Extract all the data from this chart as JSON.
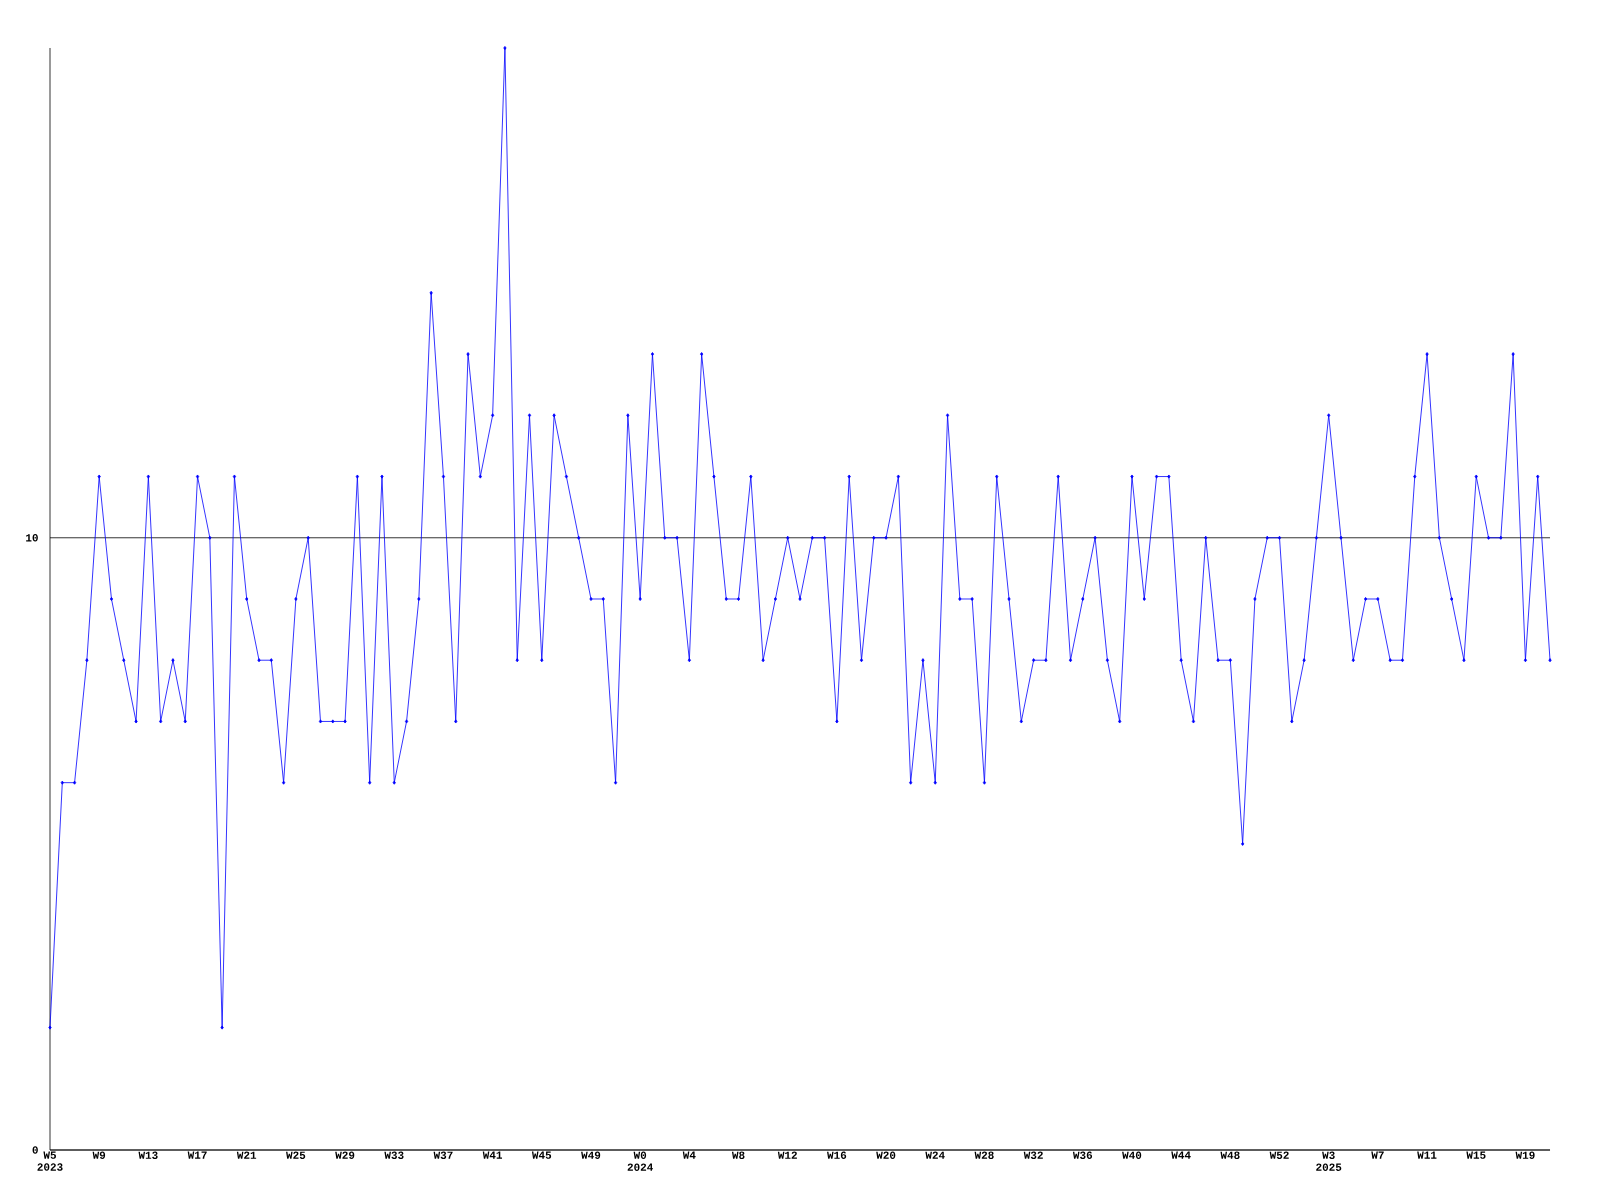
{
  "chart_data": {
    "type": "line",
    "color": "#0000ff",
    "marker": "diamond",
    "grid": "y",
    "ylim": [
      0,
      18
    ],
    "yticks": [
      0,
      10
    ],
    "categories": [
      "W5 2023",
      null,
      null,
      null,
      "W9",
      null,
      null,
      null,
      "W13",
      null,
      null,
      null,
      "W17",
      null,
      null,
      null,
      "W21",
      null,
      null,
      null,
      "W25",
      null,
      null,
      null,
      "W29",
      null,
      null,
      null,
      "W33",
      null,
      null,
      null,
      "W37",
      null,
      null,
      null,
      "W41",
      null,
      null,
      null,
      "W45",
      null,
      null,
      null,
      "W49",
      null,
      null,
      null,
      "W0 2024",
      null,
      null,
      null,
      "W4",
      null,
      null,
      null,
      "W8",
      null,
      null,
      null,
      "W12",
      null,
      null,
      null,
      "W16",
      null,
      null,
      null,
      "W20",
      null,
      null,
      null,
      "W24",
      null,
      null,
      null,
      "W28",
      null,
      null,
      null,
      "W32",
      null,
      null,
      null,
      "W36",
      null,
      null,
      null,
      "W40",
      null,
      null,
      null,
      "W44",
      null,
      null,
      null,
      "W48",
      null,
      null,
      null,
      "W52",
      null,
      null,
      null,
      "W3 2025",
      null,
      null,
      null,
      "W7",
      null,
      null,
      null,
      "W11",
      null,
      null,
      null,
      "W15",
      null,
      null,
      null,
      "W19",
      null,
      null
    ],
    "values": [
      2,
      6,
      6,
      8,
      11,
      9,
      8,
      7,
      11,
      7,
      8,
      7,
      11,
      10,
      2,
      11,
      9,
      8,
      8,
      6,
      9,
      10,
      7,
      7,
      7,
      11,
      6,
      11,
      6,
      7,
      9,
      14,
      11,
      7,
      13,
      11,
      12,
      18,
      8,
      12,
      8,
      12,
      11,
      10,
      9,
      9,
      6,
      12,
      9,
      13,
      10,
      10,
      8,
      13,
      11,
      9,
      9,
      11,
      8,
      9,
      10,
      9,
      10,
      10,
      7,
      11,
      8,
      10,
      10,
      11,
      6,
      8,
      6,
      12,
      9,
      9,
      6,
      11,
      9,
      7,
      8,
      8,
      11,
      8,
      9,
      10,
      8,
      7,
      11,
      9,
      11,
      11,
      8,
      7,
      10,
      8,
      8,
      5,
      9,
      10,
      10,
      7,
      8,
      10,
      12,
      10,
      8,
      9,
      9,
      8,
      8,
      11,
      13,
      10,
      9,
      8,
      11,
      10,
      10,
      13,
      8,
      11,
      8
    ]
  }
}
